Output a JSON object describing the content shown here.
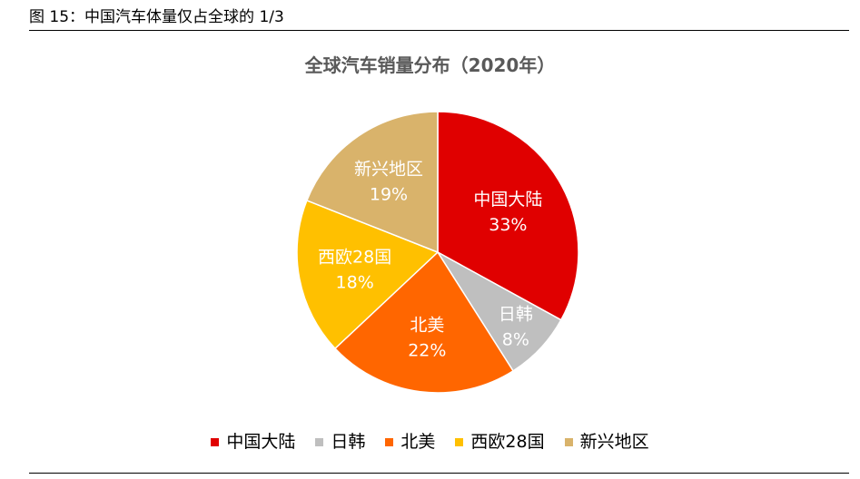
{
  "caption": "图 15：中国汽车体量仅占全球的 1/3",
  "chart_data": {
    "type": "pie",
    "title": "全球汽车销量分布（2020年）",
    "categories": [
      "中国大陆",
      "日韩",
      "北美",
      "西欧28国",
      "新兴地区"
    ],
    "values": [
      33,
      8,
      22,
      18,
      19
    ],
    "value_labels": [
      "33%",
      "8%",
      "22%",
      "18%",
      "19%"
    ],
    "colors": [
      "#E00000",
      "#BFBFBF",
      "#FF6600",
      "#FFC000",
      "#D9B36B"
    ],
    "legend_position": "bottom",
    "start_angle_deg": 0,
    "direction": "clockwise"
  }
}
